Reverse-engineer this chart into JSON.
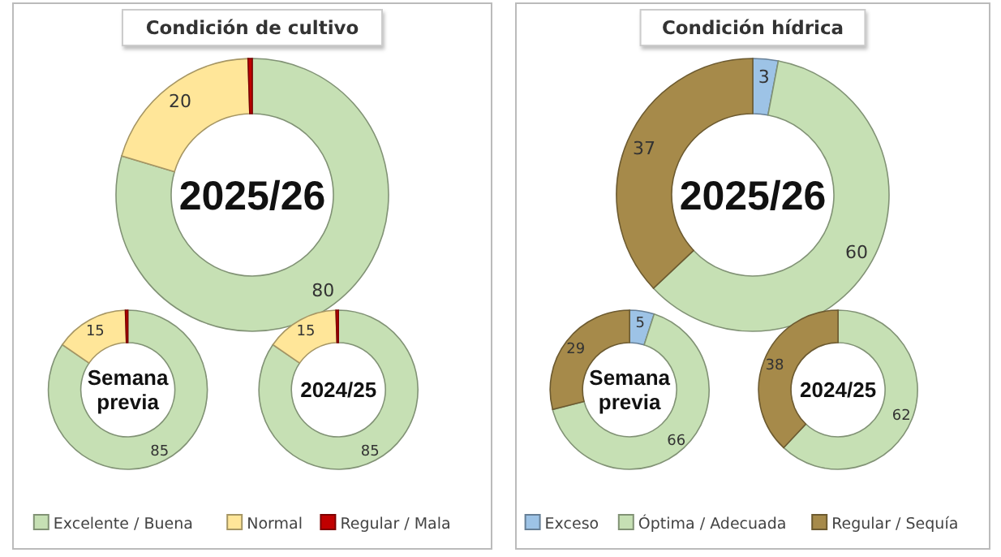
{
  "chart_data": [
    {
      "type": "donut",
      "title": "Condición de cultivo",
      "categories": [
        "Excelente / Buena",
        "Normal",
        "Regular / Mala"
      ],
      "colors": [
        "#c6e0b4",
        "#ffe699",
        "#c00000"
      ],
      "legend": "bottom",
      "series": [
        {
          "name": "2025/26",
          "values": [
            80,
            20,
            0.5
          ],
          "value_labels": [
            "80",
            "20",
            null
          ]
        },
        {
          "name": "Semana previa",
          "values": [
            85,
            15,
            0.5
          ],
          "value_labels": [
            "85",
            "15",
            null
          ]
        },
        {
          "name": "2024/25",
          "values": [
            85,
            15,
            0.5
          ],
          "value_labels": [
            "85",
            "15",
            null
          ]
        }
      ]
    },
    {
      "type": "donut",
      "title": "Condición hídrica",
      "categories": [
        "Exceso",
        "Óptima / Adecuada",
        "Regular / Sequía"
      ],
      "colors": [
        "#9dc3e6",
        "#c6e0b4",
        "#a68a4a"
      ],
      "legend": "bottom",
      "series": [
        {
          "name": "2025/26",
          "values": [
            3,
            60,
            37
          ],
          "value_labels": [
            "3",
            "60",
            "37"
          ]
        },
        {
          "name": "Semana previa",
          "values": [
            5,
            66,
            29
          ],
          "value_labels": [
            "5",
            "66",
            "29"
          ]
        },
        {
          "name": "2024/25",
          "values": [
            0,
            62,
            38
          ],
          "value_labels": [
            null,
            "62",
            "38"
          ]
        }
      ]
    }
  ]
}
